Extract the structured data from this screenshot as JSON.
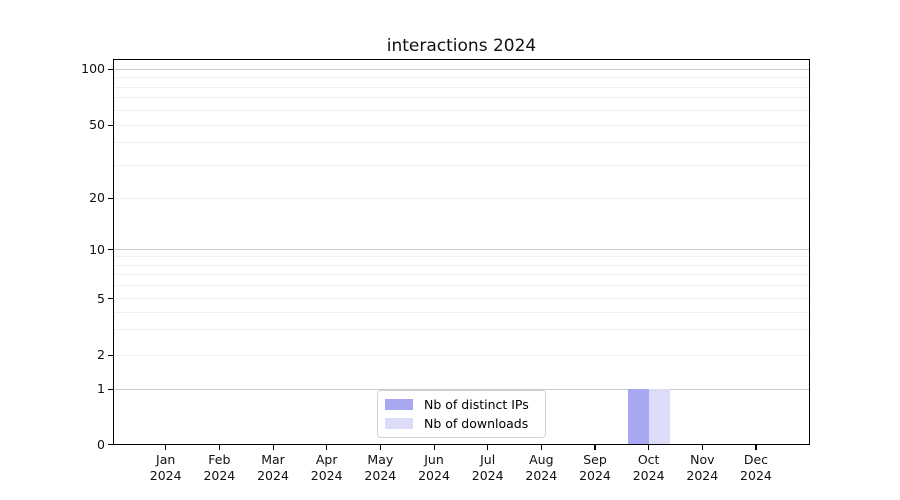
{
  "title": "interactions 2024",
  "chart_data": {
    "type": "bar",
    "title": "interactions 2024",
    "categories": [
      "Jan 2024",
      "Feb 2024",
      "Mar 2024",
      "Apr 2024",
      "May 2024",
      "Jun 2024",
      "Jul 2024",
      "Aug 2024",
      "Sep 2024",
      "Oct 2024",
      "Nov 2024",
      "Dec 2024"
    ],
    "series": [
      {
        "name": "Nb of distinct IPs",
        "color": "#a8a8f2",
        "values": [
          0,
          0,
          0,
          0,
          0,
          0,
          0,
          0,
          0,
          1,
          0,
          0
        ]
      },
      {
        "name": "Nb of downloads",
        "color": "#dcdcf8",
        "values": [
          0,
          0,
          0,
          0,
          0,
          0,
          0,
          0,
          0,
          1,
          0,
          0
        ]
      }
    ],
    "xlabel": "",
    "ylabel": "",
    "yscale": "symlog",
    "ylim": [
      0,
      113
    ],
    "y_ticks": [
      0,
      1,
      2,
      5,
      10,
      20,
      50,
      100
    ],
    "y_gridlines_major": [
      1,
      10,
      100
    ],
    "y_gridlines_minor": [
      2,
      3,
      4,
      5,
      6,
      7,
      8,
      9,
      20,
      30,
      40,
      50,
      60,
      70,
      80,
      90
    ],
    "grid": true,
    "legend_position": "lower center"
  },
  "colors": {
    "background": "#ffffff",
    "spine": "#000000",
    "grid_major": "#cbcbcb",
    "grid_minor": "#efefef",
    "text": "#111111",
    "legend_border": "#d2d2d2",
    "bar_distinct_ips": "#a8a8f2",
    "bar_downloads": "#dcdcf8"
  }
}
